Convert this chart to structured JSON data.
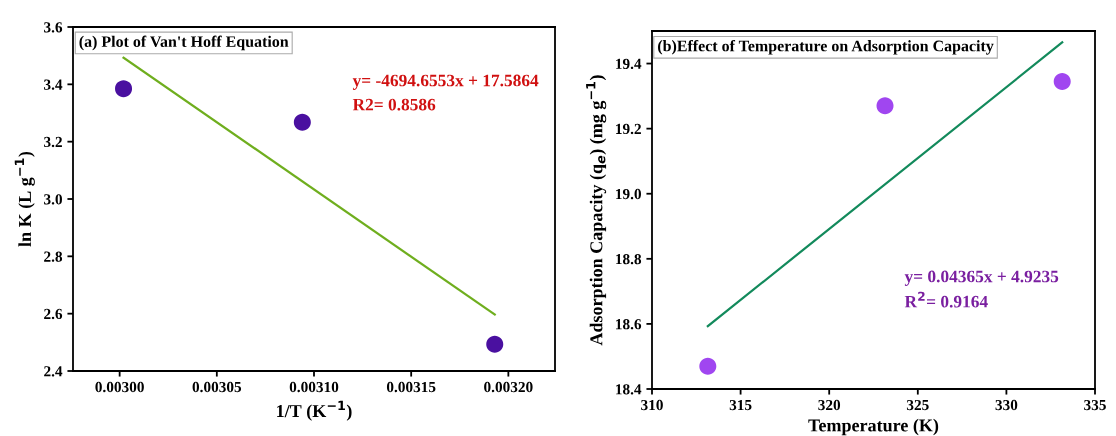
{
  "chart_data": [
    {
      "type": "scatter",
      "title": "(a) Plot of Van't Hoff Equation",
      "xlabel": "1/T (K$^{−1}$)",
      "ylabel": "ln K (L g$^{−1}$)",
      "series": [
        {
          "color": "#4a10a0",
          "marker": "circle",
          "x": [
            0.003002,
            0.003094,
            0.003193
          ],
          "values": [
            3.385,
            3.268,
            2.493
          ]
        },
        {
          "type": "line",
          "color": "#6fae1e",
          "line_style": "solid",
          "marker": "none",
          "x": [
            0.003002,
            0.003193
          ],
          "values": [
            3.493,
            2.597
          ]
        }
      ],
      "annotations": [
        "y= -4694.6553x + 17.5864",
        "R2= 0.8586"
      ],
      "xlim": [
        0.002976,
        0.003224
      ],
      "xticks": [
        {
          "value": 0.003,
          "label": "0.00300"
        },
        {
          "value": 0.00305,
          "label": "0.00305"
        },
        {
          "value": 0.0031,
          "label": "0.00310"
        },
        {
          "value": 0.00315,
          "label": "0.00315"
        },
        {
          "value": 0.0032,
          "label": "0.00320"
        }
      ],
      "ylim": [
        2.4,
        3.6
      ],
      "yticks": [
        {
          "value": 2.4,
          "label": "2.4"
        },
        {
          "value": 2.6,
          "label": "2.6"
        },
        {
          "value": 2.8,
          "label": "2.8"
        },
        {
          "value": 3.0,
          "label": "3.0"
        },
        {
          "value": 3.2,
          "label": "3.2"
        },
        {
          "value": 3.4,
          "label": "3.4"
        },
        {
          "value": 3.6,
          "label": "3.6"
        }
      ],
      "grid": false
    },
    {
      "type": "scatter",
      "title": "(b)Effect of Temperature on Adsorption Capacity",
      "xlabel": "Temperature (K)",
      "ylabel": "Adsorption Capacity (q$_{e}$) (mg g$^{−1}$)",
      "series": [
        {
          "color": "#a046f0",
          "marker": "circle",
          "x": [
            313.15,
            323.15,
            333.15
          ],
          "values": [
            18.47,
            19.27,
            19.345
          ]
        },
        {
          "type": "line",
          "color": "#138a5c",
          "line_style": "solid",
          "marker": "none",
          "x": [
            313.15,
            333.15
          ],
          "values": [
            18.593,
            19.465
          ]
        }
      ],
      "annotations": [
        "y= 0.04365x + 4.9235",
        "R$^{2}$= 0.9164"
      ],
      "xlim": [
        310,
        335
      ],
      "xticks": [
        310,
        315,
        320,
        325,
        330,
        335
      ],
      "ylim": [
        18.4,
        19.5
      ],
      "yticks": [
        {
          "value": 18.4,
          "label": "18.4"
        },
        {
          "value": 18.6,
          "label": "18.6"
        },
        {
          "value": 18.8,
          "label": "18.8"
        },
        {
          "value": 19.0,
          "label": "19.0"
        },
        {
          "value": 19.2,
          "label": "19.2"
        },
        {
          "value": 19.4,
          "label": "19.4"
        }
      ],
      "grid": false
    }
  ]
}
